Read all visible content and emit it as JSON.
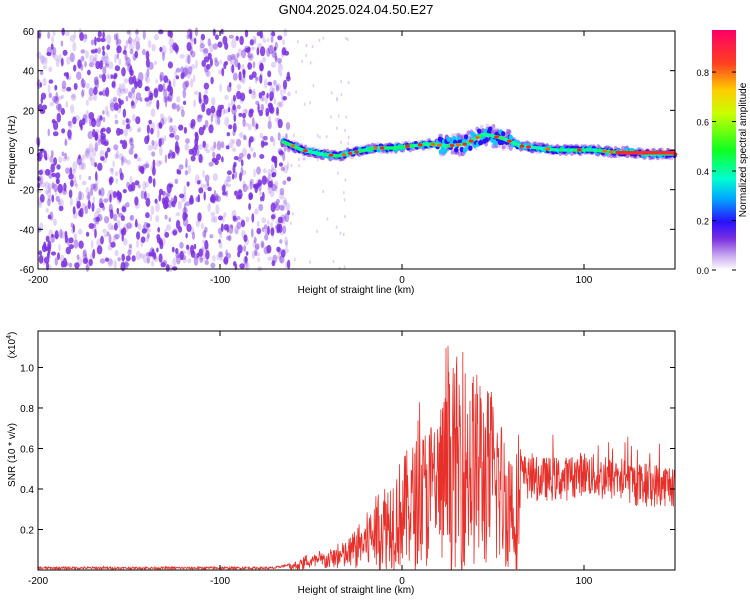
{
  "title": "GN04.2025.024.04.50.E27",
  "colors": {
    "snr_line": "#e8302a",
    "spectrogram_noise": "#7a2fe0",
    "axis": "#000000"
  },
  "chart_data": [
    {
      "type": "heatmap",
      "xlabel": "Height of straight line (km)",
      "ylabel": "Frequency (Hz)",
      "xlim": [
        -200,
        150
      ],
      "ylim": [
        -60,
        60
      ],
      "xticks": [
        "-200",
        "-100",
        "0",
        "100"
      ],
      "yticks": [
        "60",
        "40",
        "20",
        "0",
        "-20",
        "-40",
        "-60"
      ],
      "colorbar": {
        "label": "Normalized spectral amplitude",
        "range": [
          0,
          1
        ],
        "ticks": [
          "0.0",
          "0.2",
          "0.4",
          "0.6",
          "0.8"
        ],
        "colormap": "rainbow (purple → blue → cyan → green → yellow → red → magenta)"
      },
      "noise_region_x": [
        -200,
        -62
      ],
      "signal_track": {
        "x": [
          -65,
          -55,
          -45,
          -35,
          -25,
          -15,
          -5,
          5,
          15,
          25,
          35,
          45,
          55,
          65,
          75,
          85,
          95,
          105,
          115,
          125,
          135,
          145
        ],
        "frequency": [
          4,
          0,
          -2,
          -3,
          -1,
          1,
          1,
          2,
          3,
          2,
          3,
          8,
          6,
          2,
          1,
          0,
          0,
          0,
          -1,
          -1,
          -2,
          -2
        ]
      }
    },
    {
      "type": "line",
      "xlabel": "Height of straight line (km)",
      "ylabel": "SNR (10 * v/v)",
      "scale_label": "(x10^4)",
      "xlim": [
        -200,
        150
      ],
      "ylim": [
        0,
        1.18
      ],
      "xticks": [
        "-200",
        "-100",
        "0",
        "100"
      ],
      "yticks": [
        "0.2",
        "0.4",
        "0.6",
        "0.8",
        "1.0"
      ],
      "series": [
        {
          "x": [
            -200,
            -150,
            -100,
            -70,
            -60,
            -50,
            -40,
            -30,
            -20,
            -10,
            0,
            10,
            20,
            30,
            40,
            50,
            60,
            70,
            80,
            90,
            100,
            110,
            120,
            130,
            140,
            150
          ],
          "y": [
            0.01,
            0.01,
            0.01,
            0.01,
            0.03,
            0.06,
            0.08,
            0.12,
            0.22,
            0.35,
            0.45,
            0.55,
            0.65,
            0.85,
            0.8,
            0.7,
            0.5,
            0.45,
            0.45,
            0.45,
            0.48,
            0.45,
            0.45,
            0.42,
            0.42,
            0.42
          ]
        }
      ]
    }
  ]
}
